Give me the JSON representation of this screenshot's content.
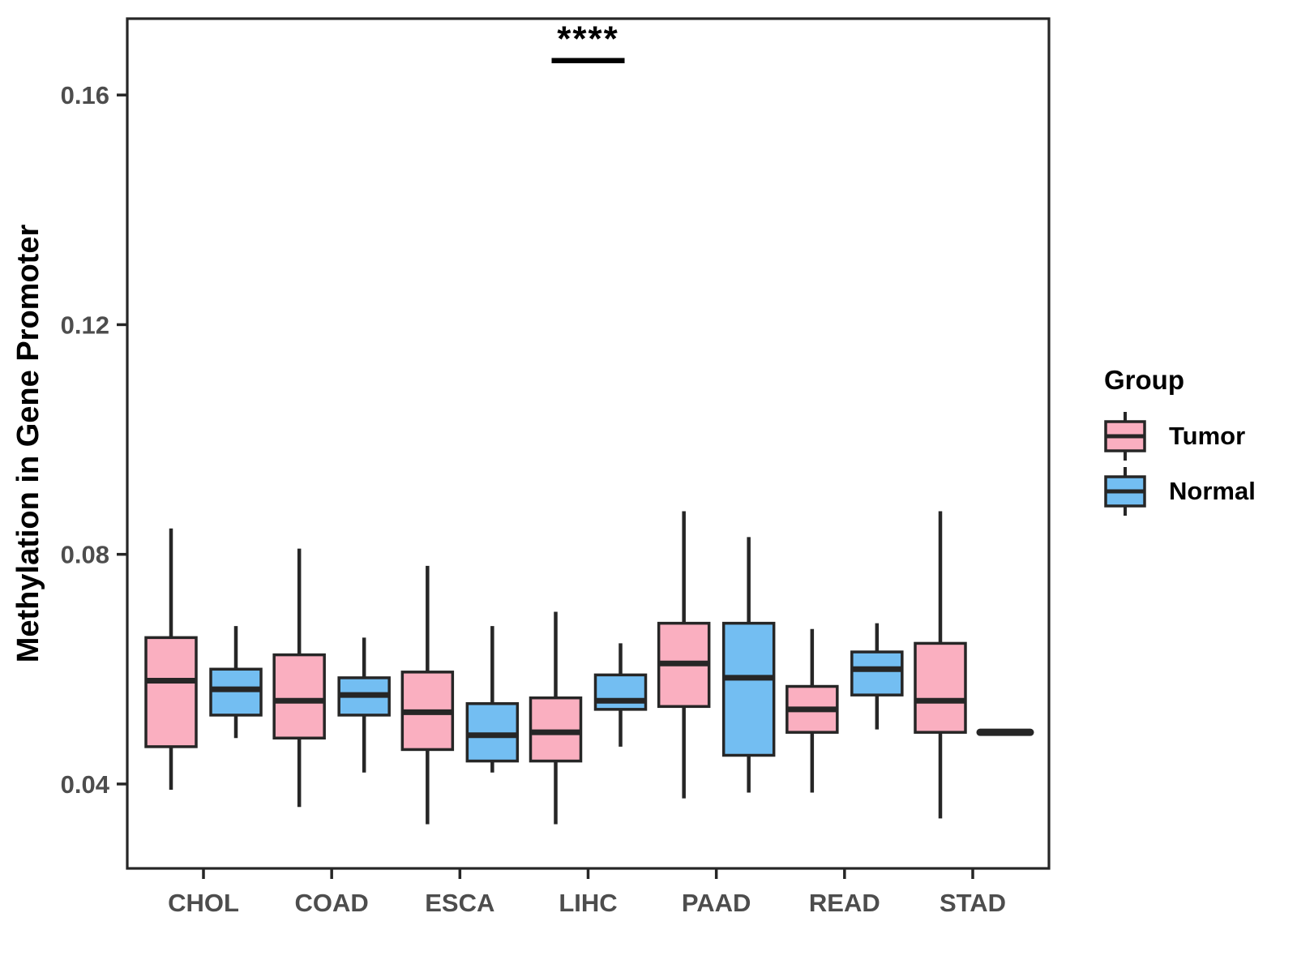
{
  "chart_data": {
    "type": "boxplot",
    "title": "",
    "xlabel": "",
    "ylabel": "Methylation in Gene Promoter",
    "categories": [
      "CHOL",
      "COAD",
      "ESCA",
      "LIHC",
      "PAAD",
      "READ",
      "STAD"
    ],
    "y_axis": {
      "min": 0.0253,
      "max": 0.1733,
      "ticks": [
        0.04,
        0.08,
        0.12,
        0.16
      ],
      "tick_labels": [
        "0.04",
        "0.08",
        "0.12",
        "0.16"
      ]
    },
    "grid": "off",
    "legend": {
      "title": "Group",
      "position": "right",
      "entries": [
        {
          "label": "Tumor",
          "color": "#FAAFC0"
        },
        {
          "label": "Normal",
          "color": "#73BEF2"
        }
      ]
    },
    "series": [
      {
        "name": "Tumor",
        "color": "#FAAFC0",
        "boxes": [
          {
            "category": "CHOL",
            "whisker_low": 0.039,
            "q1": 0.0465,
            "median": 0.058,
            "q3": 0.0655,
            "whisker_high": 0.0845
          },
          {
            "category": "COAD",
            "whisker_low": 0.036,
            "q1": 0.048,
            "median": 0.0545,
            "q3": 0.0625,
            "whisker_high": 0.081
          },
          {
            "category": "ESCA",
            "whisker_low": 0.033,
            "q1": 0.046,
            "median": 0.0525,
            "q3": 0.0595,
            "whisker_high": 0.078
          },
          {
            "category": "LIHC",
            "whisker_low": 0.033,
            "q1": 0.044,
            "median": 0.049,
            "q3": 0.055,
            "whisker_high": 0.07
          },
          {
            "category": "PAAD",
            "whisker_low": 0.0375,
            "q1": 0.0535,
            "median": 0.061,
            "q3": 0.068,
            "whisker_high": 0.0875
          },
          {
            "category": "READ",
            "whisker_low": 0.0385,
            "q1": 0.049,
            "median": 0.053,
            "q3": 0.057,
            "whisker_high": 0.067
          },
          {
            "category": "STAD",
            "whisker_low": 0.034,
            "q1": 0.049,
            "median": 0.0545,
            "q3": 0.0645,
            "whisker_high": 0.0875
          }
        ]
      },
      {
        "name": "Normal",
        "color": "#73BEF2",
        "boxes": [
          {
            "category": "CHOL",
            "whisker_low": 0.048,
            "q1": 0.052,
            "median": 0.0565,
            "q3": 0.06,
            "whisker_high": 0.0675
          },
          {
            "category": "COAD",
            "whisker_low": 0.042,
            "q1": 0.052,
            "median": 0.0555,
            "q3": 0.0585,
            "whisker_high": 0.0655
          },
          {
            "category": "ESCA",
            "whisker_low": 0.042,
            "q1": 0.044,
            "median": 0.0485,
            "q3": 0.054,
            "whisker_high": 0.0675
          },
          {
            "category": "LIHC",
            "whisker_low": 0.0465,
            "q1": 0.053,
            "median": 0.0545,
            "q3": 0.059,
            "whisker_high": 0.0645
          },
          {
            "category": "PAAD",
            "whisker_low": 0.0385,
            "q1": 0.045,
            "median": 0.0585,
            "q3": 0.068,
            "whisker_high": 0.083
          },
          {
            "category": "READ",
            "whisker_low": 0.0495,
            "q1": 0.0555,
            "median": 0.06,
            "q3": 0.063,
            "whisker_high": 0.068
          },
          {
            "category": "STAD",
            "median_only": true,
            "median": 0.049
          }
        ]
      }
    ],
    "annotations": [
      {
        "label": "****",
        "category": "LIHC",
        "line_y": 0.166,
        "spans": [
          "Tumor",
          "Normal"
        ]
      }
    ],
    "colors": {
      "box_outline": "#262626",
      "axis_line": "#262626",
      "axis_text": "#4D4D4D",
      "label_text": "#000000"
    }
  }
}
